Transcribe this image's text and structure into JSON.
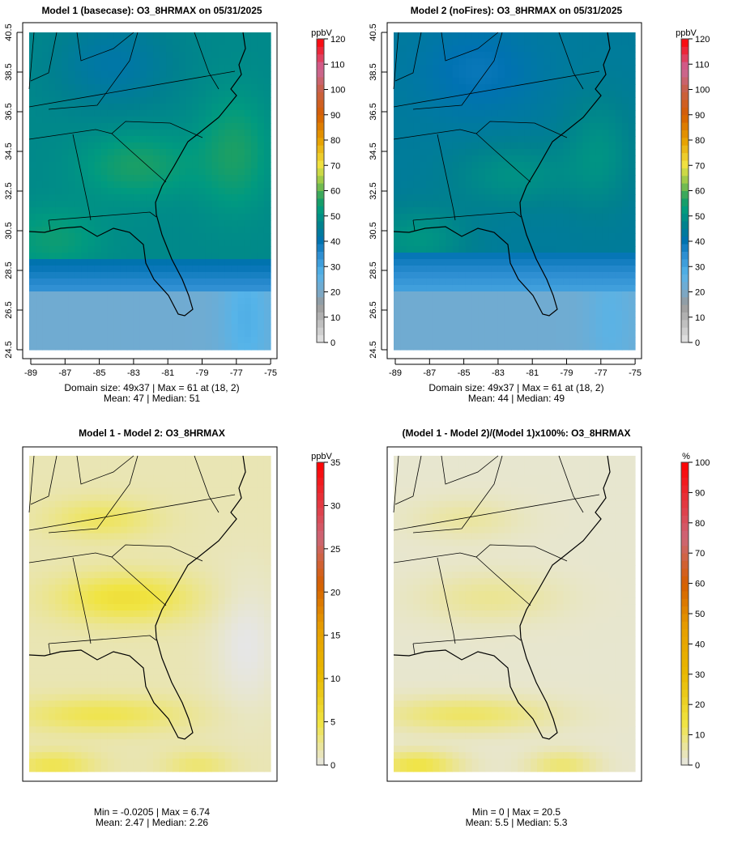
{
  "panels": [
    {
      "title": "Model 1 (basecase): O3_8HRMAX on 05/31/2025",
      "unit": "ppbV",
      "scale": "conc",
      "max": 120,
      "ticks": [
        0,
        10,
        20,
        30,
        40,
        50,
        60,
        70,
        80,
        90,
        100,
        110,
        120
      ],
      "field": "m1",
      "axes": true,
      "stats": [
        "Domain size: 49x37 | Max = 61 at (18, 2)",
        "Mean: 47 |  Median: 51"
      ]
    },
    {
      "title": "Model 2 (noFires): O3_8HRMAX on 05/31/2025",
      "unit": "ppbV",
      "scale": "conc",
      "max": 120,
      "ticks": [
        0,
        10,
        20,
        30,
        40,
        50,
        60,
        70,
        80,
        90,
        100,
        110,
        120
      ],
      "field": "m2",
      "axes": true,
      "stats": [
        "Domain size: 49x37 | Max = 61 at (18, 2)",
        "Mean: 44 |  Median: 49"
      ]
    },
    {
      "title": "Model 1 - Model 2: O3_8HRMAX",
      "unit": "ppbV",
      "scale": "diff",
      "max": 35,
      "ticks": [
        0,
        5,
        10,
        15,
        20,
        25,
        30,
        35
      ],
      "field": "d",
      "axes": false,
      "stats": [
        "Min = -0.0205 | Max = 6.74",
        "Mean: 2.47 |  Median: 2.26"
      ]
    },
    {
      "title": "(Model 1 - Model 2)/(Model 1)x100%: O3_8HRMAX",
      "unit": "%",
      "scale": "diff",
      "max": 100,
      "ticks": [
        0,
        10,
        20,
        30,
        40,
        50,
        60,
        70,
        80,
        90,
        100
      ],
      "field": "p",
      "axes": false,
      "stats": [
        "Min = 0 | Max = 20.5",
        "Mean: 5.5 |  Median: 5.3"
      ]
    }
  ],
  "x_ticks": [
    "-89",
    "-87",
    "-85",
    "-83",
    "-81",
    "-79",
    "-77",
    "-75"
  ],
  "y_ticks": [
    "24.5",
    "26.5",
    "28.5",
    "30.5",
    "32.5",
    "34.5",
    "36.5",
    "38.5",
    "40.5"
  ],
  "colors": {
    "conc": [
      [
        0,
        "#e6e6e6"
      ],
      [
        15,
        "#999999"
      ],
      [
        20,
        "#7aa8c8"
      ],
      [
        27,
        "#56b4e9"
      ],
      [
        35,
        "#2b8cd0"
      ],
      [
        40,
        "#0072b2"
      ],
      [
        46,
        "#00808f"
      ],
      [
        52,
        "#009a80"
      ],
      [
        57,
        "#20a060"
      ],
      [
        63,
        "#8cc44a"
      ],
      [
        70,
        "#f0e442"
      ],
      [
        80,
        "#e6a000"
      ],
      [
        90,
        "#d55e00"
      ],
      [
        100,
        "#c8604a"
      ],
      [
        108,
        "#cc6699"
      ],
      [
        120,
        "#ff0000"
      ]
    ],
    "diff": [
      [
        0,
        "#e6e6e6"
      ],
      [
        0.14,
        "#f0e442"
      ],
      [
        0.3,
        "#e8b800"
      ],
      [
        0.45,
        "#e69f00"
      ],
      [
        0.6,
        "#d55e00"
      ],
      [
        0.75,
        "#cc6677"
      ],
      [
        1,
        "#ff0000"
      ]
    ]
  }
}
